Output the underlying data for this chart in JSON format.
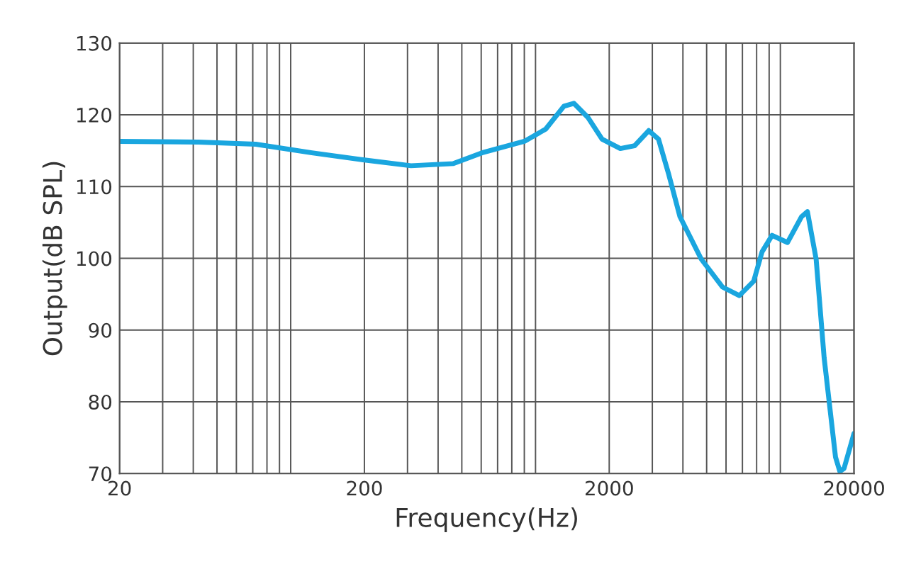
{
  "chart_data": {
    "type": "line",
    "xlabel": "Frequency(Hz)",
    "ylabel": "Output(dB SPL)",
    "log": "x",
    "grid": true,
    "legend": false,
    "line_style": "solid",
    "marker": "none",
    "xlim": [
      20,
      20000
    ],
    "ylim": [
      70,
      130
    ],
    "xticks": [
      20,
      {
        "value": 30,
        "label": null
      },
      {
        "value": 40,
        "label": null
      },
      {
        "value": 50,
        "label": null
      },
      {
        "value": 60,
        "label": null
      },
      {
        "value": 70,
        "label": null
      },
      {
        "value": 80,
        "label": null
      },
      {
        "value": 90,
        "label": null
      },
      {
        "value": 100,
        "label": null
      },
      200,
      {
        "value": 300,
        "label": null
      },
      {
        "value": 400,
        "label": null
      },
      {
        "value": 500,
        "label": null
      },
      {
        "value": 600,
        "label": null
      },
      {
        "value": 700,
        "label": null
      },
      {
        "value": 800,
        "label": null
      },
      {
        "value": 900,
        "label": null
      },
      {
        "value": 1000,
        "label": null
      },
      2000,
      {
        "value": 3000,
        "label": null
      },
      {
        "value": 4000,
        "label": null
      },
      {
        "value": 5000,
        "label": null
      },
      {
        "value": 6000,
        "label": null
      },
      {
        "value": 7000,
        "label": null
      },
      {
        "value": 8000,
        "label": null
      },
      {
        "value": 9000,
        "label": null
      },
      {
        "value": 10000,
        "label": null
      },
      20000
    ],
    "yticks": [
      70,
      80,
      90,
      100,
      110,
      120,
      130
    ],
    "series": [
      {
        "color": "#1aa6df",
        "x": [
          20,
          42,
          72,
          122,
          200,
          310,
          462,
          604,
          900,
          1100,
          1306,
          1434,
          1640,
          1870,
          2220,
          2540,
          2900,
          3180,
          3500,
          3890,
          4750,
          5800,
          6800,
          7780,
          8420,
          9250,
          10700,
          12200,
          12900,
          14000,
          15100,
          16800,
          17500,
          18200,
          20000
        ],
        "values": [
          116.3,
          116.2,
          115.9,
          114.7,
          113.7,
          112.9,
          113.2,
          114.7,
          116.3,
          118,
          121.2,
          121.6,
          119.6,
          116.6,
          115.3,
          115.7,
          117.8,
          116.6,
          111.7,
          105.8,
          99.9,
          96,
          94.8,
          96.8,
          100.9,
          103.2,
          102.2,
          105.8,
          106.5,
          99.9,
          86.1,
          72.3,
          70.3,
          70.7,
          75.6
        ]
      }
    ]
  }
}
